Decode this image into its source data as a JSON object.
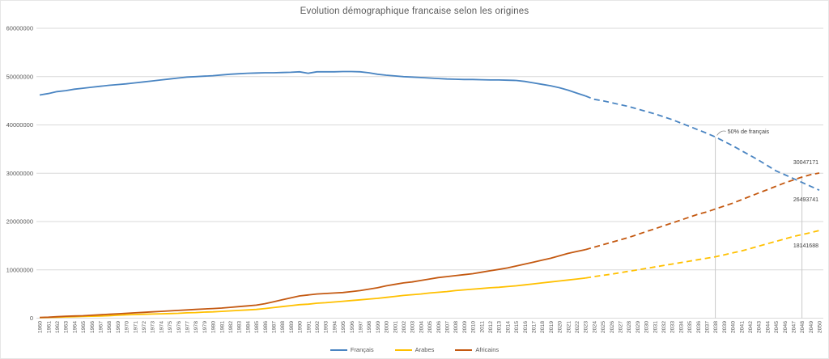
{
  "chart_data": {
    "type": "line",
    "title": "Evolution démographique francaise selon les origines",
    "xlabel": "",
    "ylabel": "",
    "ylim": [
      0,
      60000000
    ],
    "y_ticks": [
      "0",
      "10000000",
      "20000000",
      "30000000",
      "40000000",
      "50000000",
      "60000000"
    ],
    "grid": "horizontal",
    "legend_position": "bottom",
    "projection_start_year": 2023,
    "x": [
      1960,
      1961,
      1962,
      1963,
      1964,
      1965,
      1966,
      1967,
      1968,
      1969,
      1970,
      1971,
      1972,
      1973,
      1974,
      1975,
      1976,
      1977,
      1978,
      1979,
      1980,
      1981,
      1982,
      1983,
      1984,
      1985,
      1986,
      1987,
      1988,
      1989,
      1990,
      1991,
      1992,
      1993,
      1994,
      1995,
      1996,
      1997,
      1998,
      1999,
      2000,
      2001,
      2002,
      2003,
      2004,
      2005,
      2006,
      2007,
      2008,
      2009,
      2010,
      2011,
      2012,
      2013,
      2014,
      2015,
      2016,
      2017,
      2018,
      2019,
      2020,
      2021,
      2022,
      2023,
      2024,
      2025,
      2026,
      2027,
      2028,
      2029,
      2030,
      2031,
      2032,
      2033,
      2034,
      2035,
      2036,
      2037,
      2038,
      2039,
      2040,
      2041,
      2042,
      2043,
      2044,
      2045,
      2046,
      2047,
      2048,
      2049,
      2050
    ],
    "series": [
      {
        "name": "Français",
        "color": "#4a85c2",
        "end_label": "26493741",
        "values": [
          46200000,
          46500000,
          46900000,
          47100000,
          47400000,
          47600000,
          47800000,
          48000000,
          48200000,
          48350000,
          48500000,
          48700000,
          48900000,
          49100000,
          49300000,
          49500000,
          49700000,
          49900000,
          50000000,
          50100000,
          50200000,
          50350000,
          50500000,
          50600000,
          50700000,
          50750000,
          50800000,
          50800000,
          50850000,
          50900000,
          51000000,
          50700000,
          51000000,
          51000000,
          51000000,
          51050000,
          51050000,
          51000000,
          50800000,
          50500000,
          50300000,
          50150000,
          50000000,
          49900000,
          49800000,
          49700000,
          49600000,
          49500000,
          49450000,
          49400000,
          49400000,
          49350000,
          49300000,
          49300000,
          49250000,
          49200000,
          49000000,
          48700000,
          48400000,
          48100000,
          47700000,
          47200000,
          46600000,
          46000000,
          45300000,
          45000000,
          44600000,
          44200000,
          43800000,
          43300000,
          42800000,
          42300000,
          41700000,
          41100000,
          40400000,
          39700000,
          39000000,
          38300000,
          37500000,
          36600000,
          35700000,
          34700000,
          33700000,
          32700000,
          31600000,
          30500000,
          29700000,
          28900000,
          28100000,
          27300000,
          26493741
        ]
      },
      {
        "name": "Arabes",
        "color": "#ffc000",
        "end_label": "18141688",
        "values": [
          100000,
          150000,
          200000,
          250000,
          300000,
          350000,
          400000,
          450000,
          500000,
          600000,
          700000,
          750000,
          800000,
          850000,
          900000,
          950000,
          1000000,
          1100000,
          1150000,
          1250000,
          1300000,
          1400000,
          1500000,
          1600000,
          1700000,
          1800000,
          2000000,
          2200000,
          2400000,
          2600000,
          2800000,
          2900000,
          3100000,
          3200000,
          3350000,
          3500000,
          3650000,
          3800000,
          3950000,
          4100000,
          4300000,
          4500000,
          4700000,
          4850000,
          5000000,
          5200000,
          5350000,
          5500000,
          5700000,
          5850000,
          6000000,
          6150000,
          6300000,
          6400000,
          6550000,
          6700000,
          6900000,
          7100000,
          7300000,
          7500000,
          7700000,
          7900000,
          8100000,
          8300000,
          8600000,
          8850000,
          9100000,
          9400000,
          9700000,
          10000000,
          10300000,
          10600000,
          10900000,
          11200000,
          11500000,
          11800000,
          12100000,
          12400000,
          12700000,
          13100000,
          13500000,
          13900000,
          14400000,
          14900000,
          15400000,
          15900000,
          16400000,
          16900000,
          17300000,
          17700000,
          18141688
        ]
      },
      {
        "name": "Africains",
        "color": "#c45911",
        "end_label": "30047171",
        "values": [
          150000,
          200000,
          300000,
          400000,
          450000,
          500000,
          600000,
          700000,
          800000,
          900000,
          1000000,
          1100000,
          1200000,
          1300000,
          1400000,
          1500000,
          1600000,
          1700000,
          1800000,
          1900000,
          2000000,
          2100000,
          2250000,
          2400000,
          2550000,
          2700000,
          3000000,
          3400000,
          3800000,
          4200000,
          4600000,
          4800000,
          5000000,
          5100000,
          5200000,
          5300000,
          5500000,
          5700000,
          6000000,
          6300000,
          6700000,
          7000000,
          7300000,
          7500000,
          7800000,
          8100000,
          8400000,
          8600000,
          8800000,
          9000000,
          9200000,
          9500000,
          9800000,
          10100000,
          10400000,
          10800000,
          11200000,
          11600000,
          12000000,
          12400000,
          12900000,
          13400000,
          13800000,
          14200000,
          14700000,
          15200000,
          15700000,
          16200000,
          16700000,
          17300000,
          17900000,
          18500000,
          19100000,
          19700000,
          20300000,
          20900000,
          21500000,
          22000000,
          22600000,
          23200000,
          23800000,
          24500000,
          25200000,
          25900000,
          26600000,
          27300000,
          28000000,
          28600000,
          29200000,
          29700000,
          30047171
        ]
      },
      {
        "name": "",
        "color": "",
        "end_label": "",
        "values": []
      }
    ],
    "annotations": [
      {
        "type": "callout_text",
        "label": "50% de français",
        "year": 2038,
        "series": "Français"
      },
      {
        "type": "drop_line",
        "year": 2038,
        "series": "Français"
      },
      {
        "type": "drop_line",
        "year": 2048,
        "series": "Africains"
      }
    ]
  },
  "colors": {
    "gridline": "#d9d9d9",
    "axis_text": "#595959",
    "data_label_text": "#404040",
    "drop_line": "#c9c9c9",
    "callout_connector": "#8c8c8c",
    "title_text": "#595959"
  }
}
